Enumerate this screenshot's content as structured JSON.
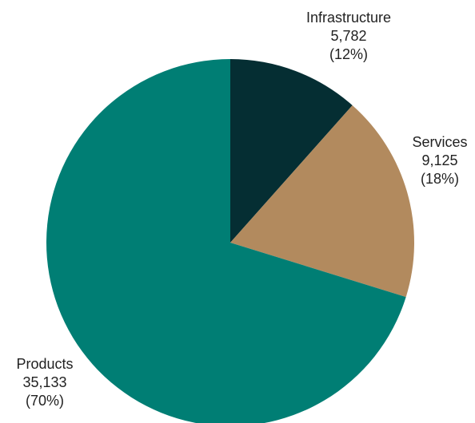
{
  "chart_data": {
    "type": "pie",
    "title": "",
    "start": "12 o'clock, clockwise",
    "slices": [
      {
        "label": "Infrastructure",
        "value": 5782,
        "value_label": "5,782",
        "percent_label": "(12%)",
        "color": "#052E33"
      },
      {
        "label": "Services",
        "value": 9125,
        "value_label": "9,125",
        "percent_label": "(18%)",
        "color": "#B28A5E"
      },
      {
        "label": "Products",
        "value": 35133,
        "value_label": "35,133",
        "percent_label": "(70%)",
        "color": "#007E74"
      }
    ]
  }
}
